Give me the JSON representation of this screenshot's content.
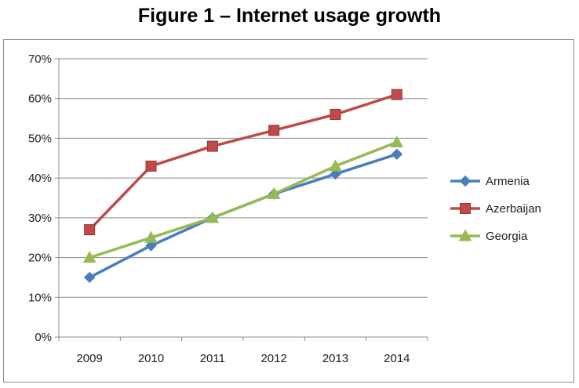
{
  "title": "Figure 1 – Internet usage growth",
  "chart_data": {
    "type": "line",
    "title": "Figure 1 – Internet usage growth",
    "xlabel": "",
    "ylabel": "",
    "categories": [
      "2009",
      "2010",
      "2011",
      "2012",
      "2013",
      "2014"
    ],
    "ylim": [
      0,
      70
    ],
    "yticks": [
      0,
      10,
      20,
      30,
      40,
      50,
      60,
      70
    ],
    "ytick_labels": [
      "0%",
      "10%",
      "20%",
      "30%",
      "40%",
      "50%",
      "60%",
      "70%"
    ],
    "y_unit": "%",
    "grid": true,
    "legend_position": "right",
    "series": [
      {
        "name": "Armenia",
        "values": [
          15,
          23,
          30,
          36,
          41,
          46
        ],
        "color": "#4a7ebb",
        "marker": "diamond"
      },
      {
        "name": "Azerbaijan",
        "values": [
          27,
          43,
          48,
          52,
          56,
          61
        ],
        "color": "#be4b48",
        "marker": "square"
      },
      {
        "name": "Georgia",
        "values": [
          20,
          25,
          30,
          36,
          43,
          49
        ],
        "color": "#98b954",
        "marker": "triangle"
      }
    ]
  }
}
